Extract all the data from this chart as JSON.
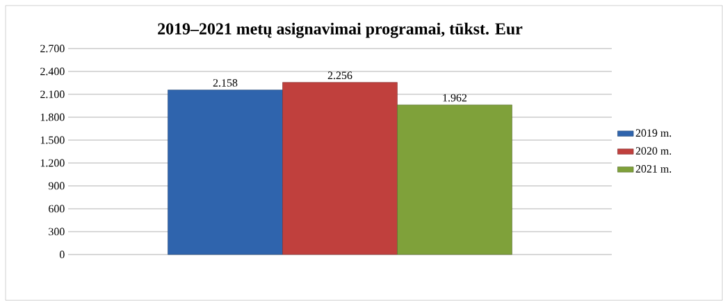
{
  "chart_data": {
    "type": "bar",
    "title": "2019–2021 metų asignavimai programai, tūkst. Eur",
    "categories": [
      null
    ],
    "series": [
      {
        "name": "2019 m.",
        "color": "#2f64ad",
        "values": [
          2158
        ],
        "value_labels": [
          "2.158"
        ]
      },
      {
        "name": "2020 m.",
        "color": "#c0403d",
        "values": [
          2256
        ],
        "value_labels": [
          "2.256"
        ]
      },
      {
        "name": "2021 m.",
        "color": "#7fa13a",
        "values": [
          1962
        ],
        "value_labels": [
          "1.962"
        ]
      }
    ],
    "ylim": [
      0,
      2700
    ],
    "yticks": [
      {
        "value": 0,
        "label": "0"
      },
      {
        "value": 300,
        "label": "300"
      },
      {
        "value": 600,
        "label": "600"
      },
      {
        "value": 900,
        "label": "900"
      },
      {
        "value": 1200,
        "label": "1.200"
      },
      {
        "value": 1500,
        "label": "1.500"
      },
      {
        "value": 1800,
        "label": "1.800"
      },
      {
        "value": 2100,
        "label": "2.100"
      },
      {
        "value": 2400,
        "label": "2.400"
      },
      {
        "value": 2700,
        "label": "2.700"
      }
    ],
    "grid": "y",
    "legend": "right"
  }
}
